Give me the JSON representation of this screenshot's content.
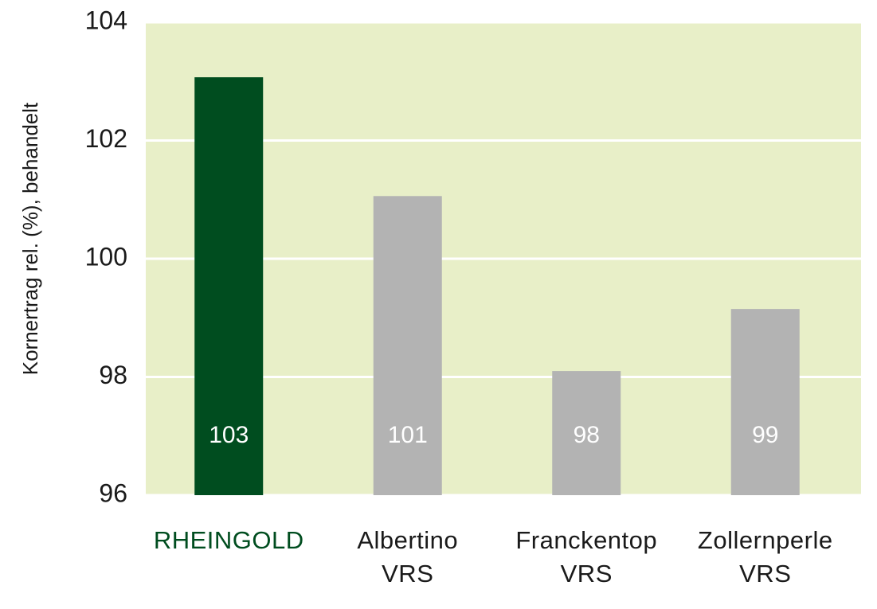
{
  "chart_data": {
    "type": "bar",
    "y_label": "Kornertrag rel. (%), behandelt",
    "categories": [
      "RHEINGOLD",
      "Albertino\nVRS",
      "Franckentop\nVRS",
      "Zollernperle\nVRS"
    ],
    "values": [
      103.07,
      101.06,
      98.1,
      99.15
    ],
    "value_labels": [
      "103",
      "101",
      "98",
      "99"
    ],
    "colors": [
      "#004d1f",
      "#b3b3b3",
      "#b3b3b3",
      "#b3b3b3"
    ],
    "label_colors": [
      "#004d1f",
      "#1a1a1a",
      "#1a1a1a",
      "#1a1a1a"
    ],
    "background": "#e8efc8",
    "ylim": [
      96,
      104
    ],
    "yticks": [
      96,
      98,
      100,
      102,
      104
    ],
    "grid": true
  }
}
